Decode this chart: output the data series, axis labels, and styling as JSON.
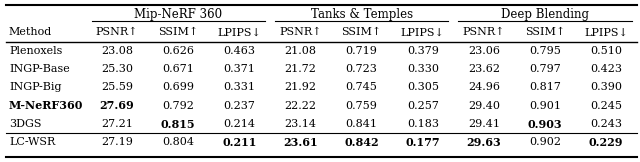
{
  "col_groups": [
    {
      "label": "Mip-NeRF 360",
      "cols": [
        "PSNR↑",
        "SSIM↑",
        "LPIPS↓"
      ]
    },
    {
      "label": "Tanks & Temples",
      "cols": [
        "PSNR↑",
        "SSIM↑",
        "LPIPS↓"
      ]
    },
    {
      "label": "Deep Blending",
      "cols": [
        "PSNR↑",
        "SSIM↑",
        "LPIPS↓"
      ]
    }
  ],
  "rows": [
    {
      "method": "Plenoxels",
      "vals": [
        "23.08",
        "0.626",
        "0.463",
        "21.08",
        "0.719",
        "0.379",
        "23.06",
        "0.795",
        "0.510"
      ],
      "bold": [],
      "method_bold": false,
      "separator": false
    },
    {
      "method": "INGP-Base",
      "vals": [
        "25.30",
        "0.671",
        "0.371",
        "21.72",
        "0.723",
        "0.330",
        "23.62",
        "0.797",
        "0.423"
      ],
      "bold": [],
      "method_bold": false,
      "separator": false
    },
    {
      "method": "INGP-Big",
      "vals": [
        "25.59",
        "0.699",
        "0.331",
        "21.92",
        "0.745",
        "0.305",
        "24.96",
        "0.817",
        "0.390"
      ],
      "bold": [],
      "method_bold": false,
      "separator": false
    },
    {
      "method": "M-NeRF360",
      "vals": [
        "27.69",
        "0.792",
        "0.237",
        "22.22",
        "0.759",
        "0.257",
        "29.40",
        "0.901",
        "0.245"
      ],
      "bold": [
        0
      ],
      "method_bold": true,
      "separator": false
    },
    {
      "method": "3DGS",
      "vals": [
        "27.21",
        "0.815",
        "0.214",
        "23.14",
        "0.841",
        "0.183",
        "29.41",
        "0.903",
        "0.243"
      ],
      "bold": [
        1,
        7
      ],
      "method_bold": false,
      "separator": false
    },
    {
      "method": "LC-WSR",
      "vals": [
        "27.19",
        "0.804",
        "0.211",
        "23.61",
        "0.842",
        "0.177",
        "29.63",
        "0.902",
        "0.229"
      ],
      "bold": [
        2,
        3,
        4,
        5,
        6,
        8
      ],
      "method_bold": false,
      "separator": true
    }
  ],
  "fontsize": 8.0,
  "title_fontsize": 8.5
}
